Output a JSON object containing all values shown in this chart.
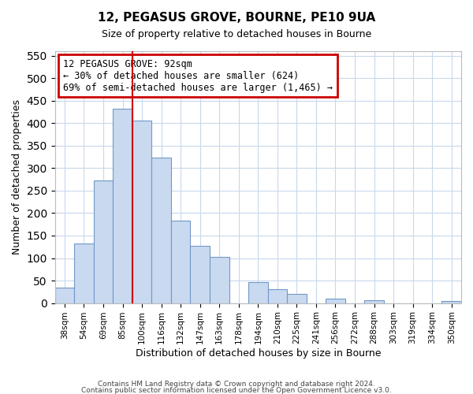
{
  "title": "12, PEGASUS GROVE, BOURNE, PE10 9UA",
  "subtitle": "Size of property relative to detached houses in Bourne",
  "xlabel": "Distribution of detached houses by size in Bourne",
  "ylabel": "Number of detached properties",
  "bar_labels": [
    "38sqm",
    "54sqm",
    "69sqm",
    "85sqm",
    "100sqm",
    "116sqm",
    "132sqm",
    "147sqm",
    "163sqm",
    "178sqm",
    "194sqm",
    "210sqm",
    "225sqm",
    "241sqm",
    "256sqm",
    "272sqm",
    "288sqm",
    "303sqm",
    "319sqm",
    "334sqm",
    "350sqm"
  ],
  "bar_heights": [
    35,
    133,
    272,
    432,
    405,
    323,
    183,
    128,
    103,
    0,
    46,
    30,
    20,
    0,
    9,
    0,
    7,
    0,
    0,
    0,
    5
  ],
  "bar_color": "#c9d9ef",
  "bar_edge_color": "#7098c8",
  "vline_x_index": 3,
  "vline_color": "#cc0000",
  "ylim": [
    0,
    560
  ],
  "yticks": [
    0,
    50,
    100,
    150,
    200,
    250,
    300,
    350,
    400,
    450,
    500,
    550
  ],
  "annotation_line0": "12 PEGASUS GROVE: 92sqm",
  "annotation_line1": "← 30% of detached houses are smaller (624)",
  "annotation_line2": "69% of semi-detached houses are larger (1,465) →",
  "footnote1": "Contains HM Land Registry data © Crown copyright and database right 2024.",
  "footnote2": "Contains public sector information licensed under the Open Government Licence v3.0."
}
